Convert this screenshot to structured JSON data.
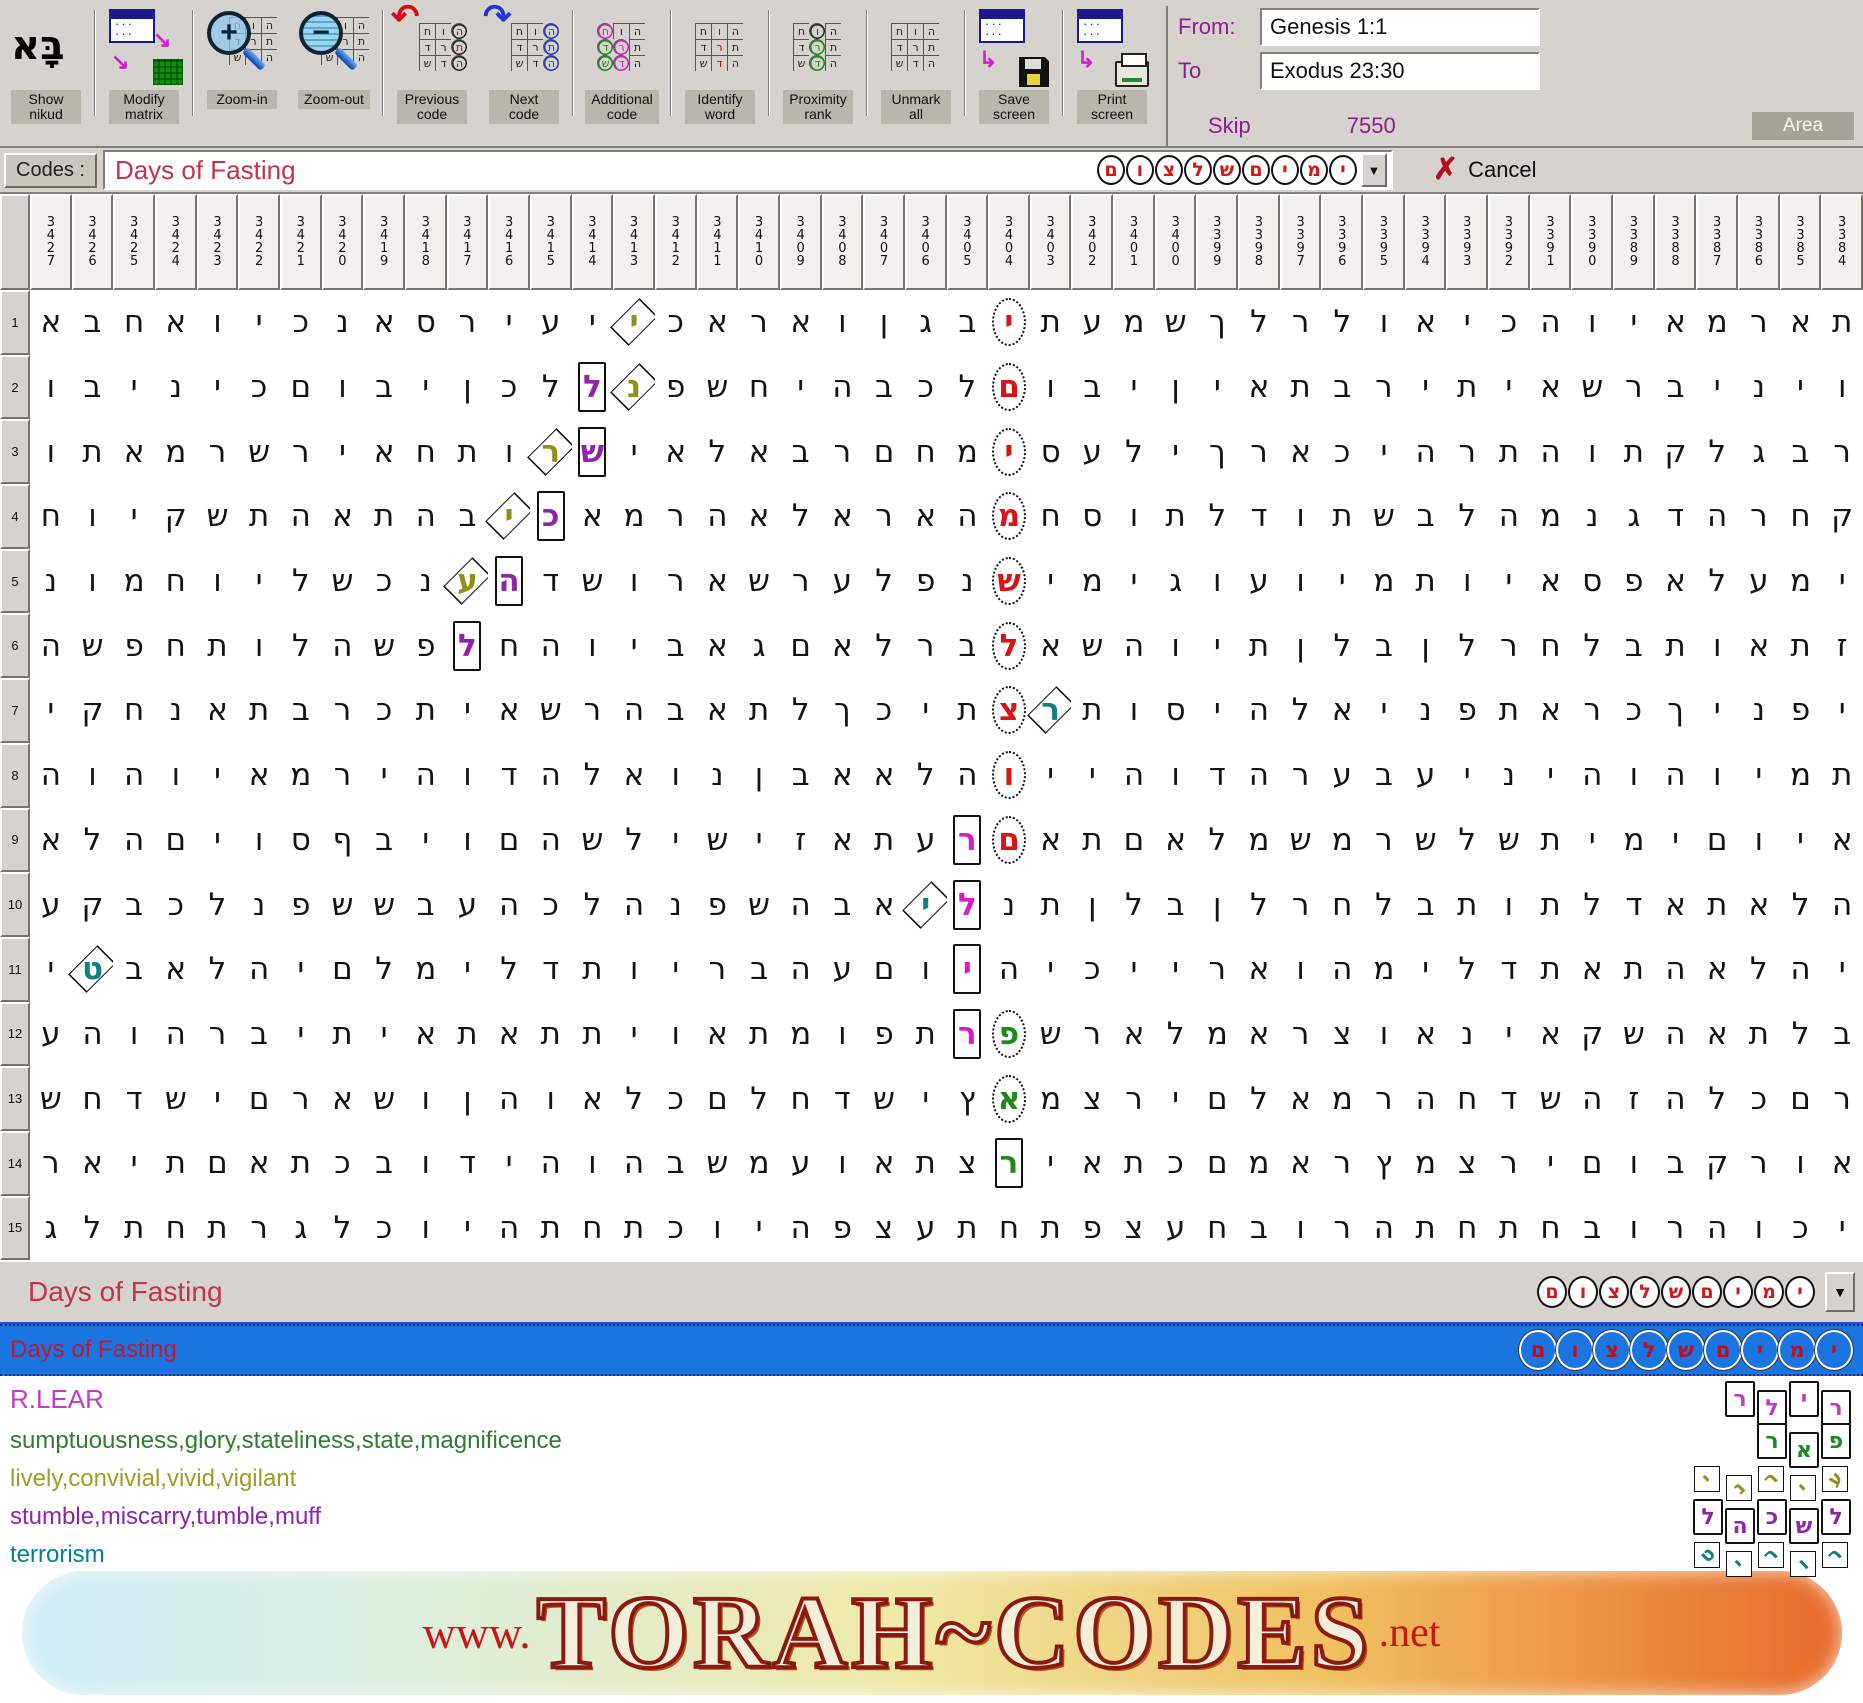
{
  "toolbar": {
    "buttons": [
      {
        "id": "show-nikud",
        "label": "Show\nnikud"
      },
      {
        "id": "modify-matrix",
        "label": "Modify\nmatrix"
      },
      {
        "id": "zoom-in",
        "label": "Zoom-in"
      },
      {
        "id": "zoom-out",
        "label": "Zoom-out"
      },
      {
        "id": "previous-code",
        "label": "Previous\ncode"
      },
      {
        "id": "next-code",
        "label": "Next\ncode"
      },
      {
        "id": "additional-code",
        "label": "Additional\ncode"
      },
      {
        "id": "identify-word",
        "label": "Identify\nword"
      },
      {
        "id": "proximity-rank",
        "label": "Proximity\nrank"
      },
      {
        "id": "unmark-all",
        "label": "Unmark\nall"
      },
      {
        "id": "save-screen",
        "label": "Save\nscreen"
      },
      {
        "id": "print-screen",
        "label": "Print\nscreen"
      }
    ],
    "nikud_glyph": "בָּא",
    "range": {
      "from_label": "From:",
      "from_value": "Genesis 1:1",
      "to_label": "To",
      "to_value": "Exodus 23:30",
      "skip_label": "Skip",
      "skip_value": "7550",
      "area_label": "Area"
    }
  },
  "codes": {
    "label": "Codes :",
    "value": "Days of Fasting",
    "dropdown_letters": [
      "ם",
      "ו",
      "צ",
      "ל",
      "ש",
      "ם",
      "י",
      "מ",
      "י"
    ],
    "dropdown_arrow": "▼",
    "cancel_x": "✗",
    "cancel_label": "Cancel"
  },
  "matrix": {
    "columns": [
      3427,
      3426,
      3425,
      3424,
      3423,
      3422,
      3421,
      3420,
      3419,
      3418,
      3417,
      3416,
      3415,
      3414,
      3413,
      3412,
      3411,
      3410,
      3409,
      3408,
      3407,
      3406,
      3405,
      3404,
      3403,
      3402,
      3401,
      3400,
      3399,
      3398,
      3397,
      3396,
      3395,
      3394,
      3393,
      3392,
      3391,
      3390,
      3389,
      3388,
      3387,
      3386,
      3385,
      3384
    ],
    "colors": {
      "red": "#d81414",
      "olive": "#8f8f1a",
      "purple": "#8e24aa",
      "magenta": "#d81bc8",
      "green": "#1e8a1e",
      "teal": "#0f7f7f"
    },
    "rows": [
      {
        "num": 1,
        "letters": "אבחאויכנאסריעייכאראוןגביתעמשךלרלואיכהויאמראת",
        "highlights": [
          {
            "i": 14,
            "s": "dia",
            "c": "olive"
          },
          {
            "i": 23,
            "s": "cir",
            "c": "red"
          }
        ]
      },
      {
        "num": 2,
        "letters": "וביניכםוביןכללנפשחיהבכלםוביןיאתבריתיאשרביניו",
        "highlights": [
          {
            "i": 13,
            "s": "rect",
            "c": "purple"
          },
          {
            "i": 14,
            "s": "dia",
            "c": "olive"
          },
          {
            "i": 23,
            "s": "cir",
            "c": "red"
          }
        ]
      },
      {
        "num": 3,
        "letters": "ותאמרשריאחתורשיאלאברםחמיסעליךראכיהרתהותקלגבר",
        "highlights": [
          {
            "i": 12,
            "s": "dia",
            "c": "olive"
          },
          {
            "i": 13,
            "s": "rect",
            "c": "purple"
          },
          {
            "i": 23,
            "s": "cir",
            "c": "red"
          }
        ]
      },
      {
        "num": 4,
        "letters": "חויקשתהאתהביכאמרהאלאראהמחסותלדותשבלהמנגדהרחק",
        "highlights": [
          {
            "i": 11,
            "s": "dia",
            "c": "olive"
          },
          {
            "i": 12,
            "s": "rect",
            "c": "purple"
          },
          {
            "i": 23,
            "s": "cir",
            "c": "red"
          }
        ]
      },
      {
        "num": 5,
        "letters": "נומחוילשכנעהדשוראשרעלפנשימיגועוימתויאספאלעמי",
        "highlights": [
          {
            "i": 10,
            "s": "dia",
            "c": "olive"
          },
          {
            "i": 11,
            "s": "rect",
            "c": "purple"
          },
          {
            "i": 23,
            "s": "cir",
            "c": "red"
          }
        ]
      },
      {
        "num": 6,
        "letters": "השפחתולהשפלחהויבאגםאלרבלאשהויתןלבןלרחלבתואתז",
        "highlights": [
          {
            "i": 10,
            "s": "rect",
            "c": "purple"
          },
          {
            "i": 23,
            "s": "cir",
            "c": "red"
          }
        ]
      },
      {
        "num": 7,
        "letters": "יקחנאתברכתיאשרהבאתלךכיתצרתוסיהלאינפתארכךינפי",
        "highlights": [
          {
            "i": 23,
            "s": "cir",
            "c": "red"
          },
          {
            "i": 24,
            "s": "dia",
            "c": "teal"
          }
        ]
      },
      {
        "num": 8,
        "letters": "הוהויאמריהודהלאונןבאאלהוייהודהרעבעיניהוהוימת",
        "highlights": [
          {
            "i": 23,
            "s": "cir",
            "c": "red"
          }
        ]
      },
      {
        "num": 9,
        "letters": "אלהםיוסףביוםהשלישיזאתערםאתםאלמשמרשלשתימיםויא",
        "highlights": [
          {
            "i": 22,
            "s": "rect",
            "c": "magenta"
          },
          {
            "i": 23,
            "s": "cir",
            "c": "red"
          }
        ]
      },
      {
        "num": 10,
        "letters": "עקבכלנפששבעהכלהנפשהבאילנתןלבןלרחלבתותלדאתאלה",
        "highlights": [
          {
            "i": 21,
            "s": "dia",
            "c": "teal"
          },
          {
            "i": 22,
            "s": "rect",
            "c": "magenta"
          }
        ]
      },
      {
        "num": 11,
        "letters": "יטבאלהיםלמילדתוירבהעםויהיכייראוהמילדתאתהאלהי",
        "highlights": [
          {
            "i": 1,
            "s": "dia",
            "c": "teal"
          },
          {
            "i": 22,
            "s": "rect",
            "c": "magenta"
          }
        ]
      },
      {
        "num": 12,
        "letters": "עהוהרביתיאתאתתיואתמופתרפשראלמארצואניאקשהאתלב",
        "highlights": [
          {
            "i": 22,
            "s": "rect",
            "c": "magenta"
          },
          {
            "i": 23,
            "s": "cir",
            "c": "green"
          }
        ]
      },
      {
        "num": 13,
        "letters": "שחדשיםראשוןהואלכםלחדשיץאמצריםלאמרהחדשהזהלכםר",
        "highlights": [
          {
            "i": 23,
            "s": "cir",
            "c": "green"
          }
        ]
      },
      {
        "num": 14,
        "letters": "ראיתםאתכבודיהוהבשמעואתצריאתכםמארץמצריםובקרוא",
        "highlights": [
          {
            "i": 23,
            "s": "rect",
            "c": "green"
          }
        ]
      },
      {
        "num": 15,
        "letters": "גלתחתרגלכויהתחתכויהפצעתחתפצעחבורהתחתחבורהוכי",
        "highlights": []
      }
    ]
  },
  "results": {
    "bar_label": "Days of Fasting",
    "bar_letters": [
      "ם",
      "ו",
      "צ",
      "ל",
      "ש",
      "ם",
      "י",
      "מ",
      "י"
    ],
    "dropdown_arrow": "▼",
    "items": [
      {
        "label": "Days of Fasting",
        "label_color": "#c01830",
        "selected": true,
        "letters": [
          "ם",
          "ו",
          "צ",
          "ל",
          "ש",
          "ם",
          "י",
          "מ",
          "י"
        ],
        "shape": "circle-blue",
        "letter_color": "#c01020"
      },
      {
        "label": "R.LEAR",
        "label_color": "#c23cc2",
        "selected": false,
        "letters": [
          "ר",
          "ל",
          "י",
          "ר"
        ],
        "shape": "box",
        "letter_color": "#c23cc2"
      },
      {
        "label": "sumptuousness,glory,stateliness,state,magnificence",
        "label_color": "#2e7d32",
        "selected": false,
        "letters": [
          "ר",
          "א",
          "פ"
        ],
        "shape": "box",
        "letter_color": "#1e8a1e"
      },
      {
        "label": "lively,convivial,vivid,vigilant",
        "label_color": "#9e9d24",
        "selected": false,
        "letters": [
          "י",
          "נ",
          "ר",
          "י",
          "ע"
        ],
        "shape": "diamond",
        "letter_color": "#8f8f1a"
      },
      {
        "label": "stumble,miscarry,tumble,muff",
        "label_color": "#8e24aa",
        "selected": false,
        "letters": [
          "ל",
          "ה",
          "כ",
          "ש",
          "ל"
        ],
        "shape": "box",
        "letter_color": "#8e24aa"
      },
      {
        "label": "terrorism",
        "label_color": "#00838f",
        "selected": false,
        "letters": [
          "ט",
          "י",
          "ר",
          "ו",
          "ר"
        ],
        "shape": "diamond",
        "letter_color": "#0f7f7f"
      }
    ]
  },
  "banner": {
    "www": "www.",
    "title": "TORAH~CODES",
    "net": ".net"
  }
}
